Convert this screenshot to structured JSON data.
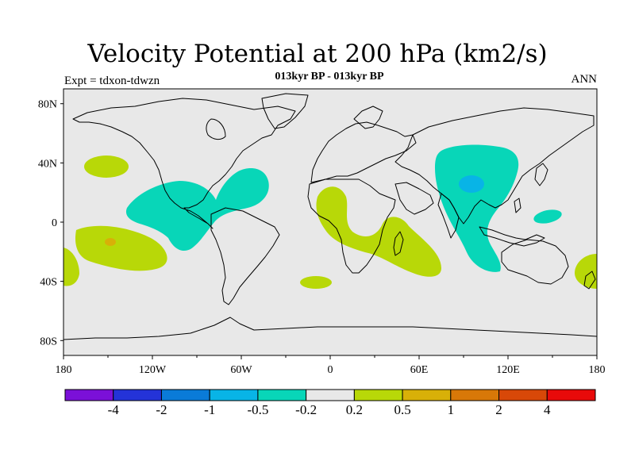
{
  "title": "Velocity Potential at 200 hPa (km2/s)",
  "subtitle": "013kyr BP - 013kyr BP",
  "left_label": "Expt = tdxon-tdwzn",
  "right_label": "ANN",
  "axes": {
    "lat_ticks": [
      "80N",
      "40N",
      "0",
      "40S",
      "80S"
    ],
    "lon_ticks": [
      "180",
      "120W",
      "60W",
      "0",
      "60E",
      "120E",
      "180"
    ]
  },
  "colorbar": {
    "colors": [
      "#7b10d8",
      "#2433d8",
      "#0a7bd8",
      "#08b4e6",
      "#08d6b8",
      "#e8e8e8",
      "#b8d808",
      "#d8b008",
      "#d87808",
      "#d84808",
      "#e80a0a"
    ],
    "labels": [
      "-4",
      "-2",
      "-1",
      "-0.5",
      "-0.2",
      "0.2",
      "0.5",
      "1",
      "2",
      "4"
    ]
  },
  "map": {
    "background_color": "#e8e8e8",
    "positive_color": "#b8d808",
    "negative_color": "#08d6b8",
    "strong_negative_color": "#08b4e6",
    "strong_positive_color": "#d8b008"
  }
}
